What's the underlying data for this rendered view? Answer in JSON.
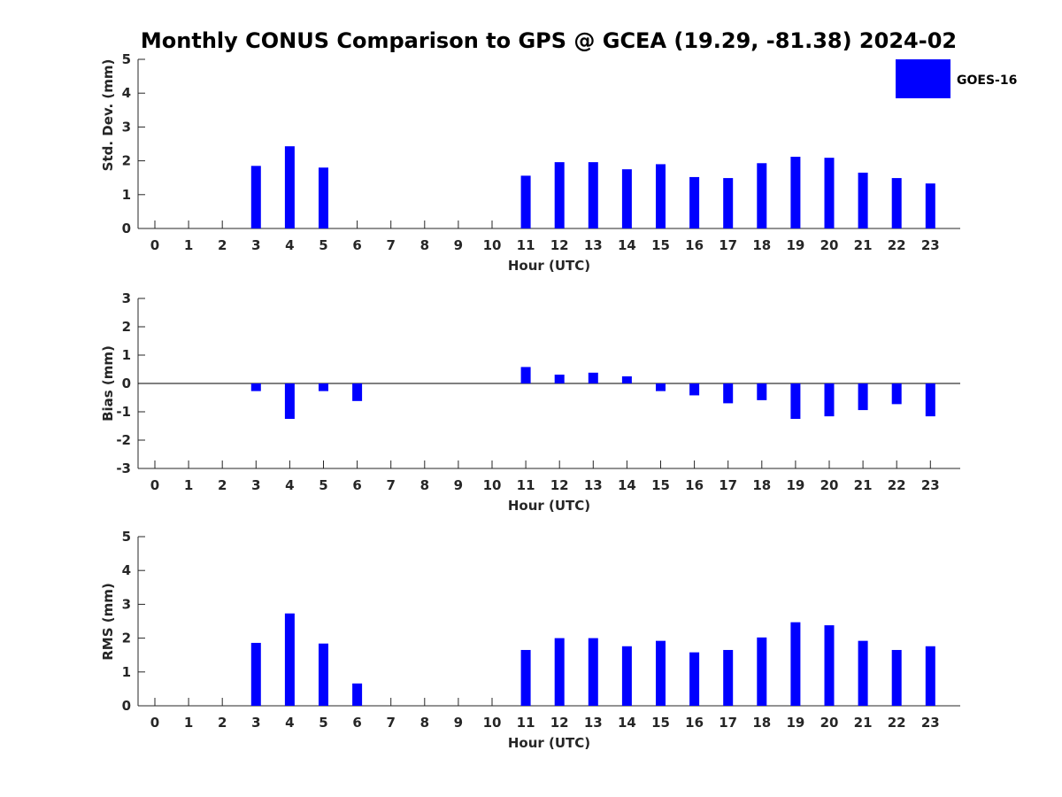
{
  "title": "Monthly CONUS Comparison to GPS @ GCEA (19.29, -81.38) 2024-02",
  "legend": {
    "label": "GOES-16",
    "color": "#0000ff"
  },
  "chart_data": [
    {
      "type": "bar",
      "xlabel": "Hour (UTC)",
      "ylabel": "Std. Dev. (mm)",
      "ylim": [
        0,
        5
      ],
      "yticks": [
        0,
        1,
        2,
        3,
        4,
        5
      ],
      "categories": [
        0,
        1,
        2,
        3,
        4,
        5,
        6,
        7,
        8,
        9,
        10,
        11,
        12,
        13,
        14,
        15,
        16,
        17,
        18,
        19,
        20,
        21,
        22,
        23
      ],
      "series": [
        {
          "name": "GOES-16",
          "values": [
            null,
            null,
            null,
            1.85,
            2.43,
            1.8,
            null,
            null,
            null,
            null,
            null,
            1.56,
            1.96,
            1.96,
            1.75,
            1.9,
            1.52,
            1.49,
            1.93,
            2.12,
            2.09,
            1.65,
            1.49,
            1.33
          ]
        }
      ]
    },
    {
      "type": "bar",
      "xlabel": "Hour (UTC)",
      "ylabel": "Bias (mm)",
      "ylim": [
        -3,
        3
      ],
      "yticks": [
        -3,
        -2,
        -1,
        0,
        1,
        2,
        3
      ],
      "categories": [
        0,
        1,
        2,
        3,
        4,
        5,
        6,
        7,
        8,
        9,
        10,
        11,
        12,
        13,
        14,
        15,
        16,
        17,
        18,
        19,
        20,
        21,
        22,
        23
      ],
      "series": [
        {
          "name": "GOES-16",
          "values": [
            null,
            null,
            null,
            -0.27,
            -1.25,
            -0.27,
            -0.62,
            null,
            null,
            null,
            null,
            0.58,
            0.31,
            0.38,
            0.25,
            -0.27,
            -0.42,
            -0.7,
            -0.59,
            -1.25,
            -1.16,
            -0.94,
            -0.73,
            -1.16
          ]
        }
      ]
    },
    {
      "type": "bar",
      "xlabel": "Hour (UTC)",
      "ylabel": "RMS (mm)",
      "ylim": [
        0,
        5
      ],
      "yticks": [
        0,
        1,
        2,
        3,
        4,
        5
      ],
      "categories": [
        0,
        1,
        2,
        3,
        4,
        5,
        6,
        7,
        8,
        9,
        10,
        11,
        12,
        13,
        14,
        15,
        16,
        17,
        18,
        19,
        20,
        21,
        22,
        23
      ],
      "series": [
        {
          "name": "GOES-16",
          "values": [
            null,
            null,
            null,
            1.86,
            2.73,
            1.84,
            0.66,
            null,
            null,
            null,
            null,
            1.65,
            2.0,
            2.0,
            1.76,
            1.92,
            1.58,
            1.65,
            2.02,
            2.47,
            2.38,
            1.92,
            1.65,
            1.76
          ]
        }
      ]
    }
  ]
}
